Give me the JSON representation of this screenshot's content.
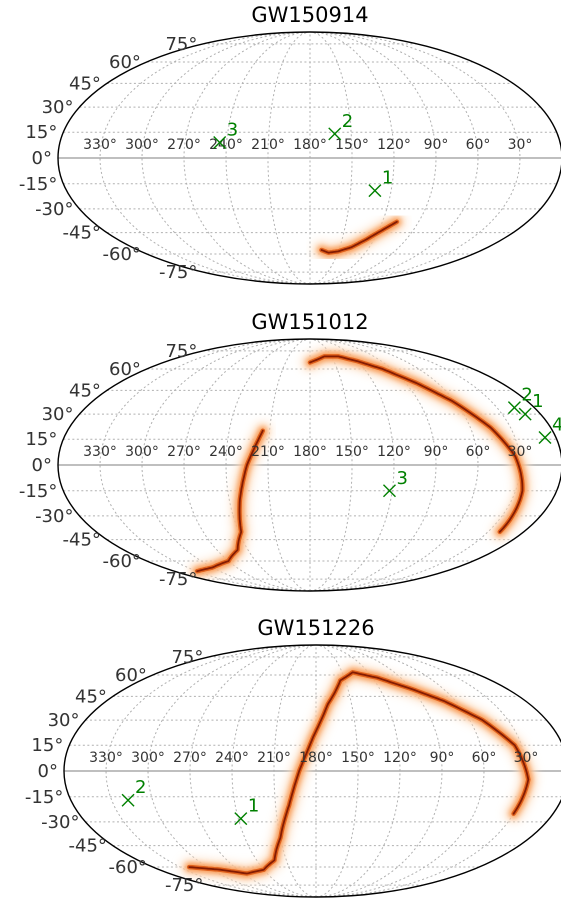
{
  "chart_data": [
    {
      "type": "scatter",
      "projection": "mollweide",
      "title": "GW150914",
      "lat_ticks": [
        "75°",
        "60°",
        "45°",
        "30°",
        "15°",
        "0°",
        "-15°",
        "-30°",
        "-45°",
        "-60°",
        "-75°"
      ],
      "lon_ticks": [
        "330°",
        "300°",
        "270°",
        "240°",
        "210°",
        "180°",
        "150°",
        "120°",
        "90°",
        "60°",
        "30°"
      ],
      "grid": true,
      "markers": [
        {
          "label": "1",
          "ra": 132,
          "dec": -19
        },
        {
          "label": "2",
          "ra": 162,
          "dec": 14
        },
        {
          "label": "3",
          "ra": 245,
          "dec": 9
        }
      ],
      "credible_region_colors": [
        "#fde0c5",
        "#f88a3a",
        "#d8500a",
        "#7a1500"
      ],
      "credible_region": [
        [
          108,
          -38
        ],
        [
          118,
          -44
        ],
        [
          128,
          -50
        ],
        [
          138,
          -55
        ],
        [
          150,
          -58
        ],
        [
          160,
          -59
        ],
        [
          168,
          -57
        ]
      ]
    },
    {
      "type": "scatter",
      "projection": "mollweide",
      "title": "GW151012",
      "lat_ticks": [
        "75°",
        "60°",
        "45°",
        "30°",
        "15°",
        "0°",
        "-15°",
        "-30°",
        "-45°",
        "-60°",
        "-75°"
      ],
      "lon_ticks": [
        "330°",
        "300°",
        "270°",
        "240°",
        "210°",
        "180°",
        "150°",
        "120°",
        "90°",
        "60°",
        "30°"
      ],
      "grid": true,
      "markers": [
        {
          "label": "1",
          "ra": 12,
          "dec": 30
        },
        {
          "label": "2",
          "ra": 16,
          "dec": 34
        },
        {
          "label": "3",
          "ra": 122,
          "dec": -15
        },
        {
          "label": "4",
          "ra": 8,
          "dec": 16
        }
      ],
      "credible_region_colors": [
        "#fde0c5",
        "#f88a3a",
        "#d8500a",
        "#7a1500"
      ],
      "credible_region": [
        [
          180,
          65
        ],
        [
          160,
          70
        ],
        [
          140,
          70
        ],
        [
          120,
          66
        ],
        [
          100,
          60
        ],
        [
          80,
          50
        ],
        [
          62,
          38
        ],
        [
          45,
          22
        ],
        [
          33,
          5
        ],
        [
          25,
          -15
        ],
        [
          20,
          -40
        ],
        [
          215,
          20
        ],
        [
          225,
          0
        ],
        [
          232,
          -20
        ],
        [
          238,
          -40
        ],
        [
          250,
          -52
        ],
        [
          270,
          -60
        ],
        [
          300,
          -65
        ],
        [
          330,
          -68
        ]
      ]
    },
    {
      "type": "scatter",
      "projection": "mollweide",
      "title": "GW151226",
      "lat_ticks": [
        "75°",
        "60°",
        "45°",
        "30°",
        "15°",
        "0°",
        "-15°",
        "-30°",
        "-45°",
        "-60°",
        "-75°"
      ],
      "lon_ticks": [
        "330°",
        "300°",
        "270°",
        "240°",
        "210°",
        "180°",
        "150°",
        "120°",
        "90°",
        "60°",
        "30°"
      ],
      "grid": true,
      "markers": [
        {
          "label": "1",
          "ra": 238,
          "dec": -28
        },
        {
          "label": "2",
          "ra": 318,
          "dec": -17
        }
      ],
      "credible_region_colors": [
        "#fde0c5",
        "#f88a3a",
        "#d8500a",
        "#7a1500"
      ],
      "credible_region": [
        [
          30,
          -25
        ],
        [
          28,
          -5
        ],
        [
          35,
          15
        ],
        [
          50,
          30
        ],
        [
          70,
          42
        ],
        [
          90,
          50
        ],
        [
          115,
          58
        ],
        [
          138,
          62
        ],
        [
          155,
          56
        ],
        [
          170,
          40
        ],
        [
          182,
          20
        ],
        [
          192,
          0
        ],
        [
          200,
          -20
        ],
        [
          210,
          -40
        ],
        [
          222,
          -55
        ],
        [
          240,
          -62
        ],
        [
          265,
          -65
        ],
        [
          290,
          -62
        ],
        [
          320,
          -60
        ]
      ]
    }
  ]
}
